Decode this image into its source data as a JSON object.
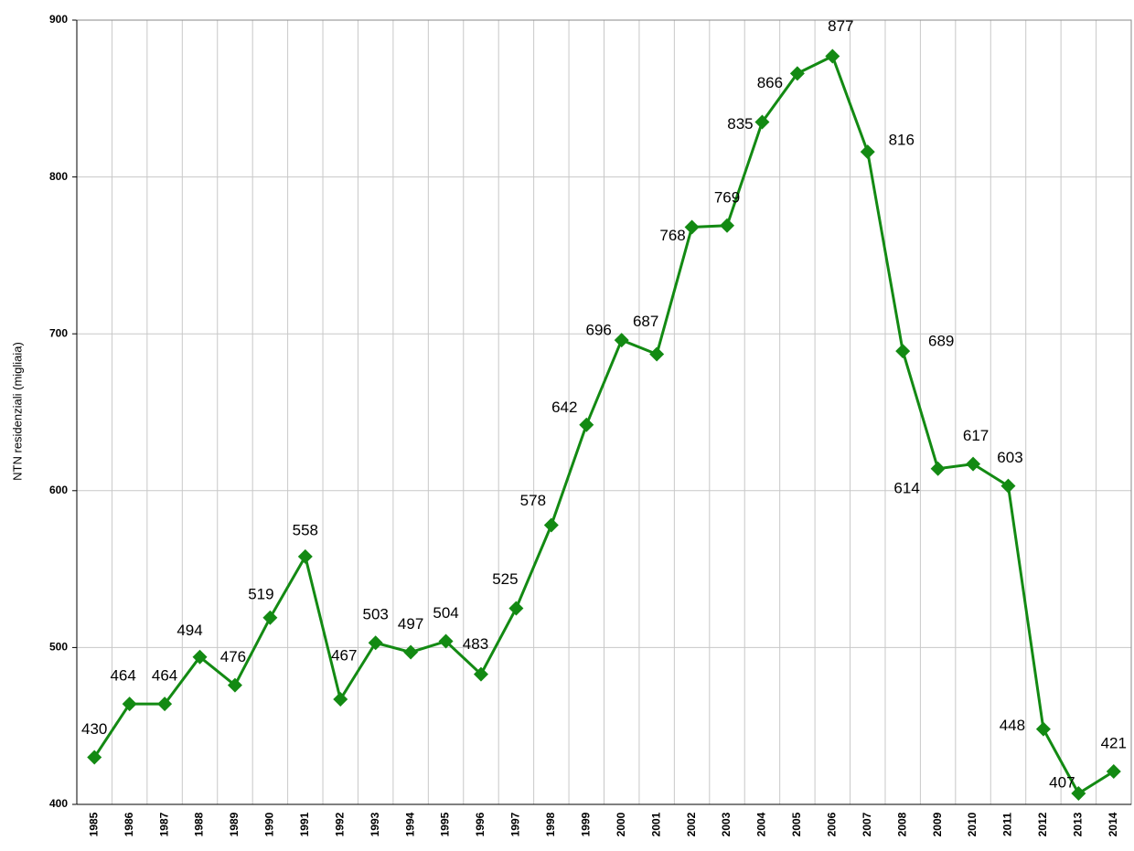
{
  "chart_data": {
    "type": "line",
    "y_label": "NTN residenziali (migliaia)",
    "categories": [
      "1985",
      "1986",
      "1987",
      "1988",
      "1989",
      "1990",
      "1991",
      "1992",
      "1993",
      "1994",
      "1995",
      "1996",
      "1997",
      "1998",
      "1999",
      "2000",
      "2001",
      "2002",
      "2003",
      "2004",
      "2005",
      "2006",
      "2007",
      "2008",
      "2009",
      "2010",
      "2011",
      "2012",
      "2013",
      "2014"
    ],
    "series": [
      {
        "color": "#138a13",
        "values": [
          430,
          464,
          464,
          494,
          476,
          519,
          558,
          467,
          503,
          497,
          504,
          483,
          525,
          578,
          642,
          696,
          687,
          768,
          769,
          835,
          866,
          877,
          816,
          689,
          614,
          617,
          603,
          448,
          407,
          421
        ]
      }
    ],
    "ylim": [
      400,
      900
    ],
    "yticks": [
      400,
      500,
      600,
      700,
      800,
      900
    ],
    "grid": true
  }
}
